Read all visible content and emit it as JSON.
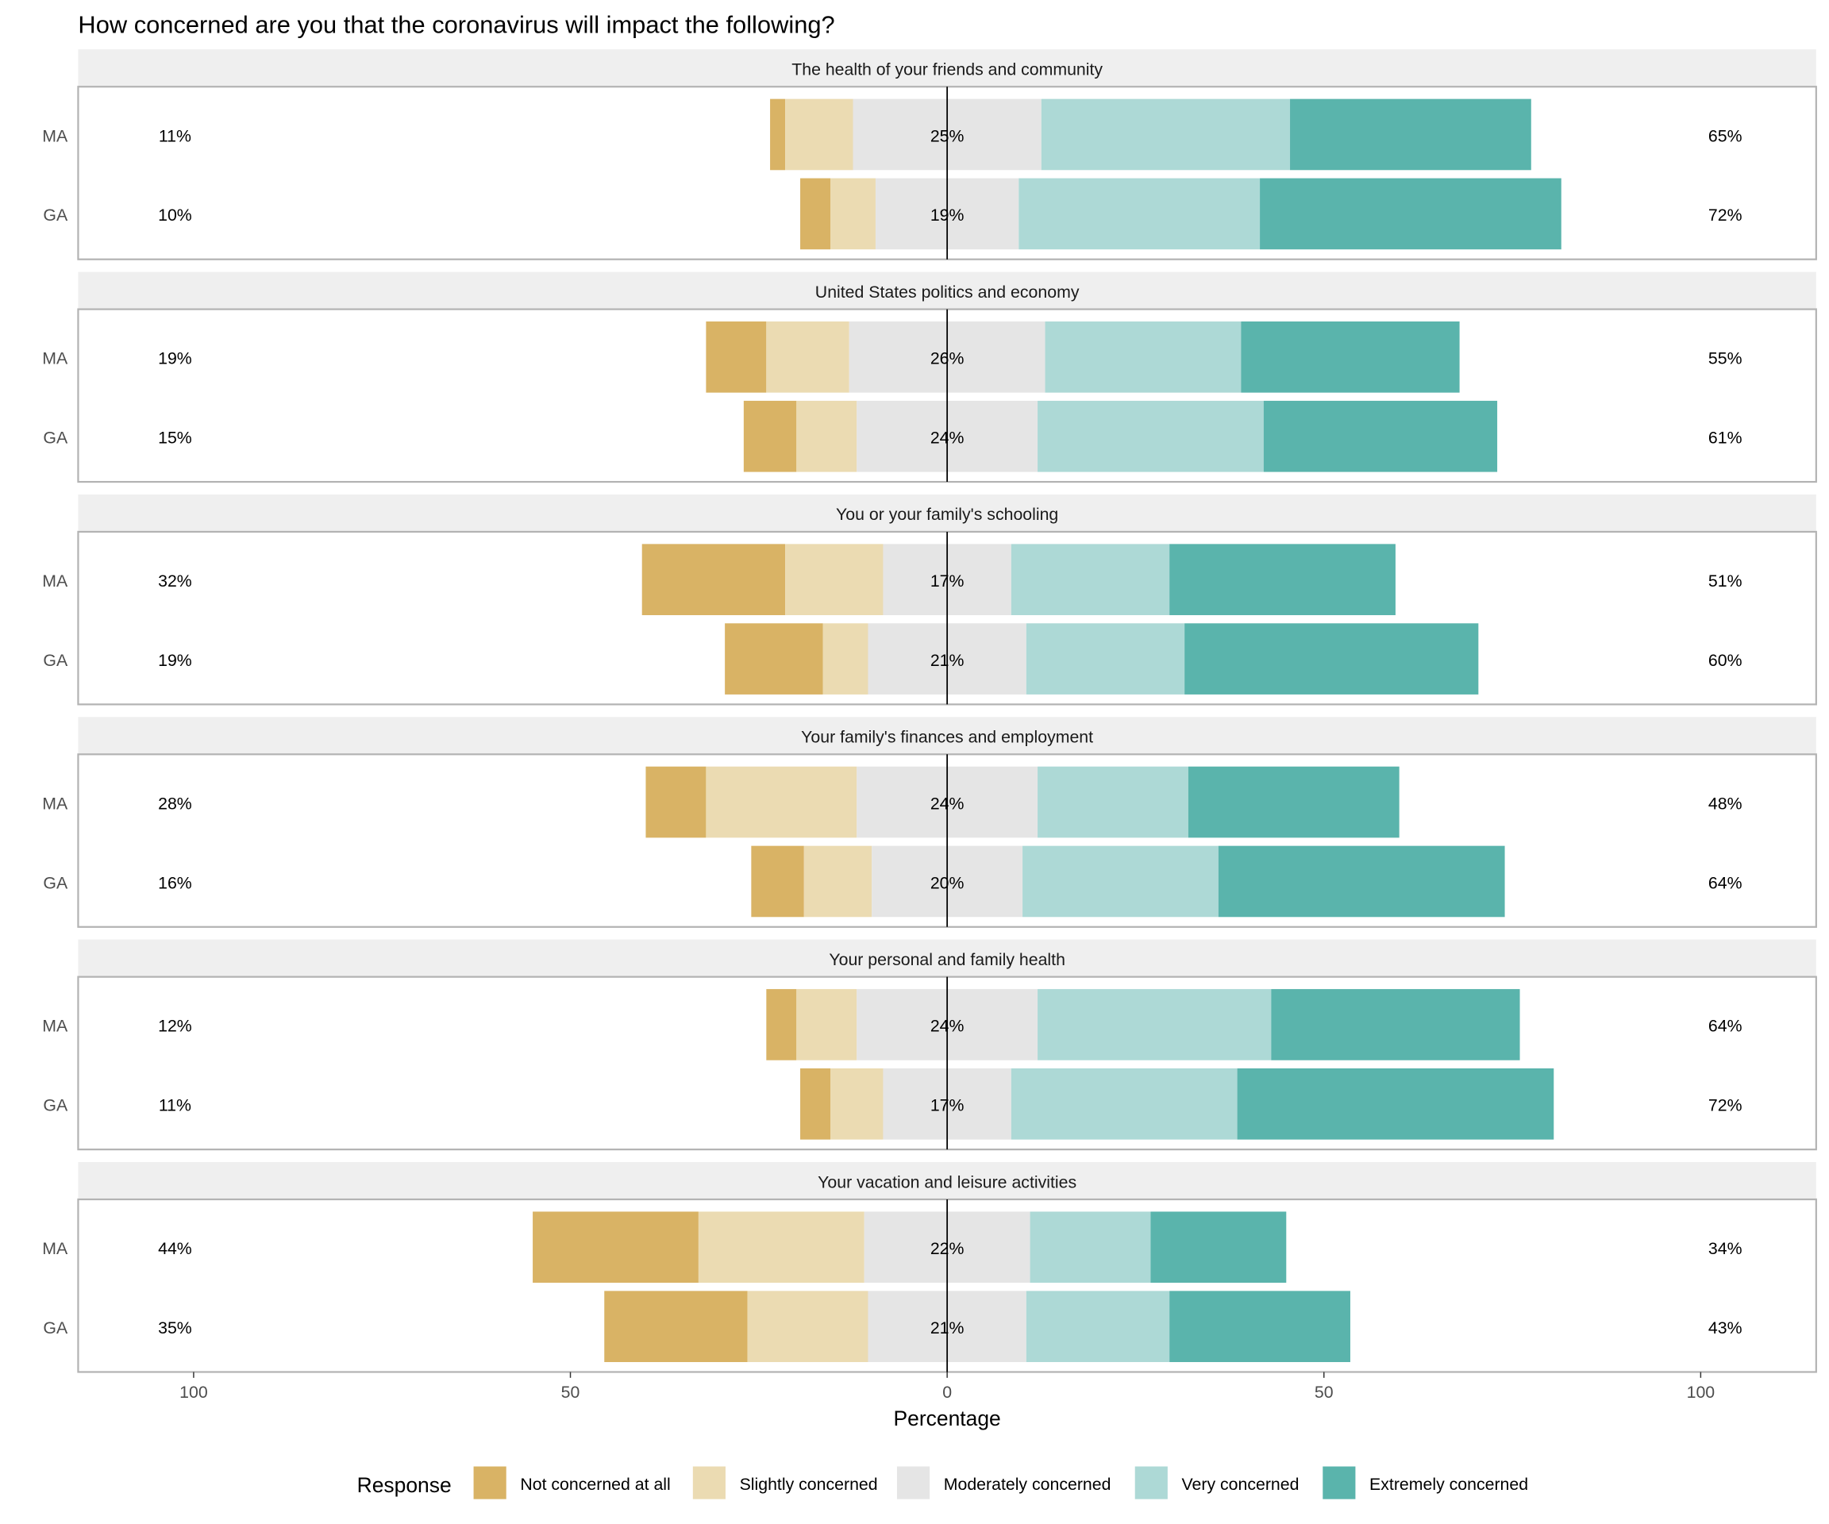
{
  "chart_data": {
    "type": "bar",
    "subtype": "diverging-stacked-horizontal",
    "title": "How concerned are you that the coronavirus will impact the following?",
    "xlabel": "Percentage",
    "ylabel": "",
    "xlim": [
      -115,
      115
    ],
    "x_ticks": [
      -100,
      -50,
      0,
      50,
      100
    ],
    "x_tick_labels": [
      "100",
      "50",
      "0",
      "50",
      "100"
    ],
    "legend": {
      "title": "Response",
      "placement": "bottom",
      "entries": [
        "Not concerned at all",
        "Slightly concerned",
        "Moderately concerned",
        "Very concerned",
        "Extremely concerned"
      ],
      "colors": [
        "#D9B365",
        "#EBDBB2",
        "#E5E5E5",
        "#ADD9D6",
        "#5AB4AC"
      ]
    },
    "panels": [
      {
        "title": "The health of your friends and community",
        "rows": [
          {
            "label": "MA",
            "values": [
              2,
              9,
              25,
              33,
              32
            ],
            "low": "11%",
            "mid": "25%",
            "high": "65%"
          },
          {
            "label": "GA",
            "values": [
              4,
              6,
              19,
              32,
              40
            ],
            "low": "10%",
            "mid": "19%",
            "high": "72%"
          }
        ]
      },
      {
        "title": "United States politics and economy",
        "rows": [
          {
            "label": "MA",
            "values": [
              8,
              11,
              26,
              26,
              29
            ],
            "low": "19%",
            "mid": "26%",
            "high": "55%"
          },
          {
            "label": "GA",
            "values": [
              7,
              8,
              24,
              30,
              31
            ],
            "low": "15%",
            "mid": "24%",
            "high": "61%"
          }
        ]
      },
      {
        "title": "You or your family's schooling",
        "rows": [
          {
            "label": "MA",
            "values": [
              19,
              13,
              17,
              21,
              30
            ],
            "low": "32%",
            "mid": "17%",
            "high": "51%"
          },
          {
            "label": "GA",
            "values": [
              13,
              6,
              21,
              21,
              39
            ],
            "low": "19%",
            "mid": "21%",
            "high": "60%"
          }
        ]
      },
      {
        "title": "Your family's finances and employment",
        "rows": [
          {
            "label": "MA",
            "values": [
              8,
              20,
              24,
              20,
              28
            ],
            "low": "28%",
            "mid": "24%",
            "high": "48%"
          },
          {
            "label": "GA",
            "values": [
              7,
              9,
              20,
              26,
              38
            ],
            "low": "16%",
            "mid": "20%",
            "high": "64%"
          }
        ]
      },
      {
        "title": "Your personal and family health",
        "rows": [
          {
            "label": "MA",
            "values": [
              4,
              8,
              24,
              31,
              33
            ],
            "low": "12%",
            "mid": "24%",
            "high": "64%"
          },
          {
            "label": "GA",
            "values": [
              4,
              7,
              17,
              30,
              42
            ],
            "low": "11%",
            "mid": "17%",
            "high": "72%"
          }
        ]
      },
      {
        "title": "Your vacation and leisure activities",
        "rows": [
          {
            "label": "MA",
            "values": [
              22,
              22,
              22,
              16,
              18
            ],
            "low": "44%",
            "mid": "22%",
            "high": "34%"
          },
          {
            "label": "GA",
            "values": [
              19,
              16,
              21,
              19,
              24
            ],
            "low": "35%",
            "mid": "21%",
            "high": "43%"
          }
        ]
      }
    ]
  }
}
